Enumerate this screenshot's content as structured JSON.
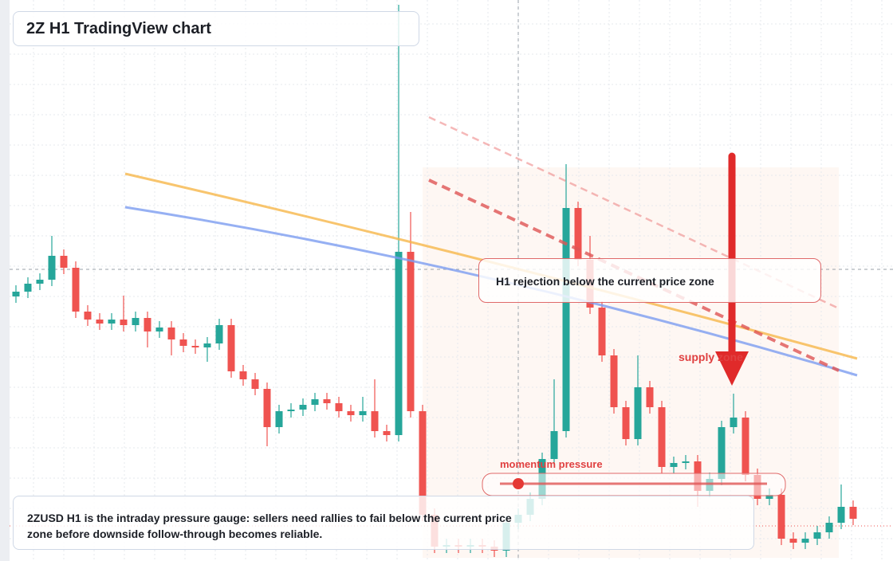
{
  "chart_data": {
    "type": "candlestick",
    "title": "2Z H1 TradingView chart",
    "callout": "H1 rejection below the current price zone",
    "zone_label": "supply zone",
    "gauge_label": "momentum pressure",
    "description": "2ZUSD H1 is the intraday pressure gauge: sellers need rallies to fail below the current price zone before downside follow-through becomes reliable.",
    "up_color": "#26a69a",
    "down_color": "#ef5350",
    "ylim": [
      0,
      70
    ],
    "open": [
      32.8,
      33.4,
      34.4,
      34.9,
      37.9,
      36.4,
      30.9,
      29.9,
      29.4,
      29.9,
      29.2,
      30.1,
      28.4,
      28.9,
      27.4,
      26.6,
      26.4,
      26.9,
      29.2,
      23.4,
      22.4,
      21.2,
      16.4,
      18.4,
      18.6,
      19.2,
      19.9,
      19.4,
      18.4,
      17.9,
      18.4,
      15.9,
      15.4,
      38.4,
      18.4,
      5.4,
      1.4,
      1.6,
      1.4,
      1.6,
      1.4,
      0.9,
      4.4,
      5.4,
      7.4,
      12.4,
      15.9,
      43.9,
      37.4,
      31.4,
      25.4,
      18.9,
      14.9,
      21.4,
      18.9,
      11.4,
      11.9,
      12.1,
      8.4,
      9.9,
      16.4,
      17.6,
      10.4,
      7.4,
      7.9,
      2.4,
      1.9,
      2.4,
      3.2,
      4.4,
      6.4
    ],
    "high": [
      34.2,
      35.2,
      35.7,
      40.4,
      38.7,
      37.2,
      31.7,
      30.7,
      30.7,
      32.9,
      30.9,
      30.9,
      29.7,
      29.7,
      28.2,
      27.4,
      27.7,
      30.0,
      30.0,
      24.2,
      23.2,
      22.0,
      19.2,
      19.4,
      20.0,
      20.7,
      20.7,
      20.2,
      19.2,
      20.2,
      22.4,
      16.7,
      69.4,
      43.4,
      19.2,
      6.2,
      2.4,
      2.4,
      2.4,
      2.4,
      2.2,
      5.2,
      6.2,
      8.2,
      13.2,
      22.4,
      49.4,
      44.7,
      40.4,
      32.2,
      26.2,
      19.7,
      25.4,
      22.2,
      19.7,
      12.7,
      12.9,
      12.9,
      10.7,
      17.2,
      20.6,
      18.4,
      11.2,
      8.7,
      8.7,
      3.2,
      3.2,
      4.0,
      5.2,
      9.2,
      7.2
    ],
    "low": [
      32.0,
      32.6,
      33.6,
      34.1,
      35.6,
      30.1,
      29.1,
      28.6,
      28.6,
      28.4,
      28.4,
      26.4,
      27.6,
      25.4,
      25.8,
      25.6,
      24.6,
      26.1,
      22.6,
      21.6,
      20.4,
      14.0,
      15.6,
      17.6,
      17.8,
      18.4,
      18.6,
      17.6,
      17.1,
      17.1,
      15.1,
      14.6,
      14.6,
      17.6,
      4.6,
      0.6,
      0.6,
      0.6,
      0.6,
      0.6,
      0.1,
      0.1,
      3.6,
      4.6,
      6.6,
      11.6,
      15.1,
      36.6,
      30.6,
      24.6,
      18.1,
      14.1,
      14.1,
      18.1,
      10.6,
      10.6,
      11.1,
      6.4,
      7.6,
      9.1,
      15.6,
      9.6,
      6.6,
      6.6,
      1.6,
      1.1,
      1.1,
      1.6,
      2.4,
      3.6,
      4.1
    ],
    "close": [
      33.4,
      34.4,
      34.9,
      37.9,
      36.4,
      30.9,
      29.9,
      29.4,
      29.9,
      29.2,
      30.1,
      28.4,
      28.9,
      27.4,
      26.6,
      26.4,
      26.9,
      29.2,
      23.4,
      22.4,
      21.2,
      16.4,
      18.4,
      18.6,
      19.2,
      19.9,
      19.4,
      18.4,
      17.9,
      18.4,
      15.9,
      15.4,
      38.4,
      18.4,
      5.4,
      1.4,
      1.6,
      1.4,
      1.6,
      1.4,
      0.9,
      4.4,
      5.4,
      7.4,
      12.4,
      15.9,
      43.9,
      37.4,
      31.4,
      25.4,
      18.9,
      14.9,
      21.4,
      18.9,
      11.4,
      11.9,
      12.1,
      8.4,
      9.9,
      16.4,
      17.6,
      10.4,
      7.4,
      7.9,
      2.4,
      1.9,
      2.4,
      3.2,
      4.4,
      6.4,
      4.9
    ]
  }
}
